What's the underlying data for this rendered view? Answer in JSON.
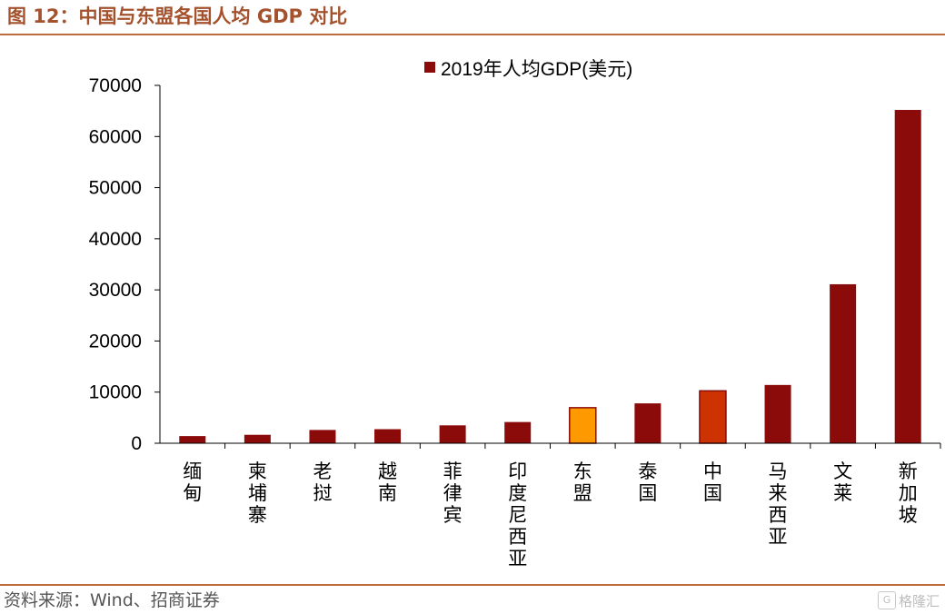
{
  "header": {
    "title": "图 12：中国与东盟各国人均 GDP 对比"
  },
  "footer": {
    "source": "资料来源：Wind、招商证券",
    "watermark_logo": "G",
    "watermark_text": "格隆汇"
  },
  "colors": {
    "bar_default": "#8b0a0a",
    "bar_asean": "#ff9900",
    "bar_china": "#cc3300",
    "accent_rule": "#c06a3e",
    "title_color": "#a4522d"
  },
  "chart_data": {
    "type": "bar",
    "title": "",
    "legend": {
      "label": "2019年人均GDP(美元)",
      "position": "top"
    },
    "xlabel": "",
    "ylabel": "",
    "ylim": [
      0,
      70000
    ],
    "yticks": [
      0,
      10000,
      20000,
      30000,
      40000,
      50000,
      60000,
      70000
    ],
    "categories": [
      "缅甸",
      "柬埔寨",
      "老挝",
      "越南",
      "菲律宾",
      "印度尼西亚",
      "东盟",
      "泰国",
      "中国",
      "马来西亚",
      "文莱",
      "新加坡"
    ],
    "series": [
      {
        "name": "2019年人均GDP(美元)",
        "values": [
          1400,
          1650,
          2600,
          2750,
          3500,
          4150,
          6950,
          7800,
          10250,
          11400,
          31100,
          65200
        ]
      }
    ],
    "highlight": {
      "东盟": "bar_asean",
      "中国": "bar_china"
    }
  }
}
